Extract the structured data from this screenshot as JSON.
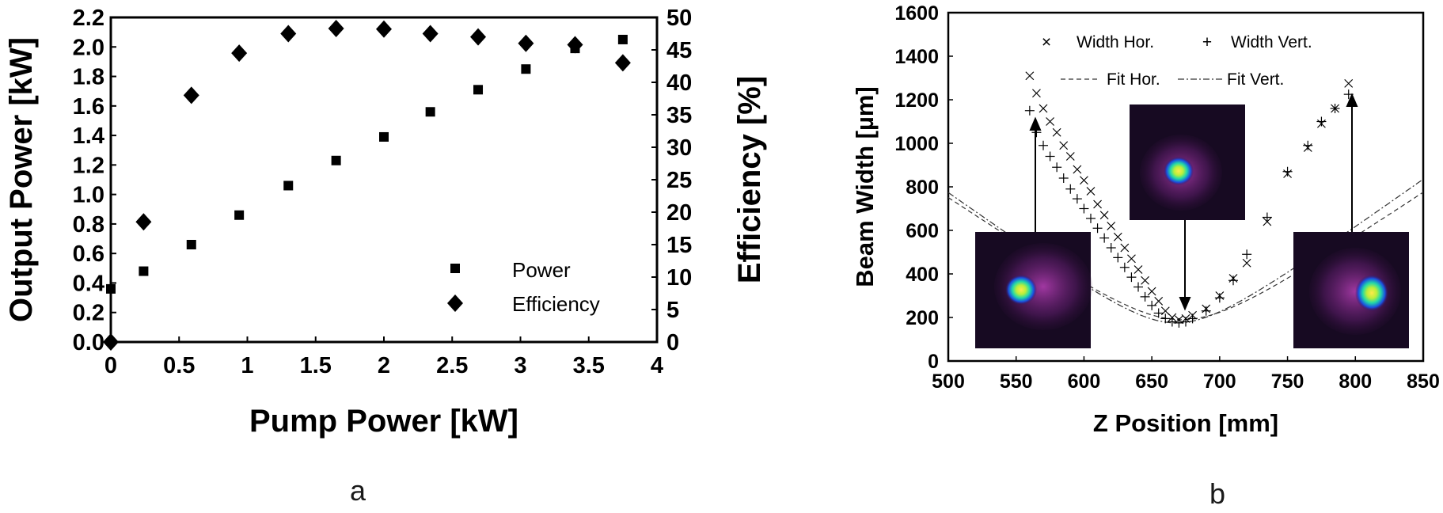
{
  "chart_data": [
    {
      "panel_label": "a",
      "type": "scatter",
      "xlabel": "Pump Power [kW]",
      "ylabel": "Output Power [kW]",
      "y2label": "Efficiency [%]",
      "xlim": [
        0,
        4
      ],
      "ylim": [
        0,
        2.2
      ],
      "y2lim": [
        0,
        50
      ],
      "xticks": [
        "0",
        "0.5",
        "1",
        "1.5",
        "2",
        "2.5",
        "3",
        "3.5",
        "4"
      ],
      "yticks": [
        "0.0",
        "0.2",
        "0.4",
        "0.6",
        "0.8",
        "1.0",
        "1.2",
        "1.4",
        "1.6",
        "1.8",
        "2.0",
        "2.2"
      ],
      "y2ticks": [
        "0",
        "5",
        "10",
        "15",
        "20",
        "25",
        "30",
        "35",
        "40",
        "45",
        "50"
      ],
      "legend_position": "bottom-right",
      "series": [
        {
          "name": "Power",
          "marker": "square",
          "axis": "left",
          "x": [
            0,
            0.24,
            0.59,
            0.94,
            1.3,
            1.65,
            2.0,
            2.34,
            2.69,
            3.04,
            3.4,
            3.75
          ],
          "y": [
            0.36,
            0.48,
            0.66,
            0.86,
            1.06,
            1.23,
            1.39,
            1.56,
            1.71,
            1.85,
            1.99,
            2.05
          ]
        },
        {
          "name": "Efficiency",
          "marker": "diamond",
          "axis": "right",
          "x": [
            0,
            0.24,
            0.59,
            0.94,
            1.3,
            1.65,
            2.0,
            2.34,
            2.69,
            3.04,
            3.4,
            3.75
          ],
          "y": [
            0,
            18.5,
            38,
            44.5,
            47.5,
            48.3,
            48.2,
            47.5,
            47.0,
            46.0,
            45.8,
            43.0
          ]
        }
      ]
    },
    {
      "panel_label": "b",
      "type": "scatter",
      "xlabel": "Z Position [mm]",
      "ylabel": "Beam Width [µm]",
      "xlim": [
        500,
        850
      ],
      "ylim": [
        0,
        1600
      ],
      "xticks": [
        "500",
        "550",
        "600",
        "650",
        "700",
        "750",
        "800",
        "850"
      ],
      "yticks": [
        "0",
        "200",
        "400",
        "600",
        "800",
        "1000",
        "1200",
        "1400",
        "1600"
      ],
      "legend_position": "top",
      "series": [
        {
          "name": "Width Hor.",
          "marker": "x",
          "points": [
            [
              560,
              1310
            ],
            [
              565,
              1230
            ],
            [
              570,
              1160
            ],
            [
              575,
              1100
            ],
            [
              580,
              1050
            ],
            [
              585,
              990
            ],
            [
              590,
              940
            ],
            [
              595,
              880
            ],
            [
              600,
              830
            ],
            [
              605,
              780
            ],
            [
              610,
              720
            ],
            [
              615,
              670
            ],
            [
              620,
              620
            ],
            [
              625,
              570
            ],
            [
              630,
              520
            ],
            [
              635,
              470
            ],
            [
              640,
              420
            ],
            [
              645,
              370
            ],
            [
              650,
              320
            ],
            [
              655,
              275
            ],
            [
              660,
              230
            ],
            [
              665,
              200
            ],
            [
              670,
              190
            ],
            [
              675,
              195
            ],
            [
              680,
              210
            ],
            [
              690,
              240
            ],
            [
              700,
              300
            ],
            [
              710,
              380
            ],
            [
              720,
              450
            ],
            [
              735,
              640
            ],
            [
              750,
              860
            ],
            [
              765,
              980
            ],
            [
              775,
              1090
            ],
            [
              785,
              1160
            ],
            [
              795,
              1275
            ]
          ]
        },
        {
          "name": "Width Vert.",
          "marker": "plus",
          "points": [
            [
              560,
              1150
            ],
            [
              565,
              1050
            ],
            [
              570,
              990
            ],
            [
              575,
              940
            ],
            [
              580,
              890
            ],
            [
              585,
              840
            ],
            [
              590,
              790
            ],
            [
              595,
              745
            ],
            [
              600,
              700
            ],
            [
              605,
              655
            ],
            [
              610,
              610
            ],
            [
              615,
              565
            ],
            [
              620,
              520
            ],
            [
              625,
              475
            ],
            [
              630,
              430
            ],
            [
              635,
              385
            ],
            [
              640,
              340
            ],
            [
              645,
              295
            ],
            [
              650,
              255
            ],
            [
              655,
              220
            ],
            [
              660,
              195
            ],
            [
              665,
              180
            ],
            [
              670,
              175
            ],
            [
              675,
              180
            ],
            [
              680,
              195
            ],
            [
              690,
              230
            ],
            [
              700,
              290
            ],
            [
              710,
              370
            ],
            [
              720,
              490
            ],
            [
              735,
              660
            ],
            [
              750,
              870
            ],
            [
              765,
              990
            ],
            [
              775,
              1100
            ],
            [
              785,
              1160
            ],
            [
              795,
              1225
            ]
          ]
        }
      ],
      "fits": [
        {
          "name": "Fit Hor.",
          "style": "dashed",
          "z0": 672,
          "w0": 190,
          "zr": 45
        },
        {
          "name": "Fit Vert.",
          "style": "dash-dot",
          "z0": 668,
          "w0": 175,
          "zr": 39
        }
      ],
      "annotations": [
        "beam-profile-left",
        "beam-profile-center",
        "beam-profile-right"
      ]
    }
  ]
}
